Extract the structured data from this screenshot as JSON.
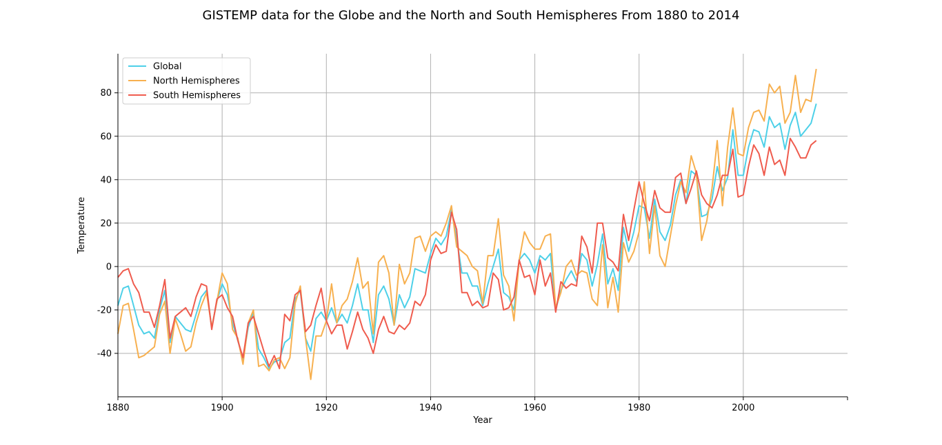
{
  "chart_data": {
    "type": "line",
    "title": "GISTEMP data for the Globe and the North and South Hemispheres From 1880 to 2014",
    "xlabel": "Year",
    "ylabel": "Temperature",
    "xlim": [
      1880,
      2020
    ],
    "ylim": [
      -60,
      98
    ],
    "xticks": [
      1880,
      1900,
      1920,
      1940,
      1960,
      1980,
      2000
    ],
    "yticks": [
      -40,
      -20,
      0,
      20,
      40,
      60,
      80
    ],
    "grid": true,
    "legend": "top-left",
    "x_start": 1880,
    "x_end": 2014,
    "series": [
      {
        "name": "Global",
        "color": "#4dd0e8",
        "values": [
          -18,
          -10,
          -9,
          -18,
          -27,
          -31,
          -30,
          -33,
          -20,
          -11,
          -35,
          -23,
          -26,
          -29,
          -30,
          -22,
          -14,
          -11,
          -28,
          -16,
          -8,
          -13,
          -26,
          -34,
          -43,
          -28,
          -21,
          -38,
          -42,
          -47,
          -44,
          -43,
          -35,
          -33,
          -15,
          -11,
          -33,
          -39,
          -24,
          -21,
          -25,
          -19,
          -26,
          -22,
          -26,
          -18,
          -8,
          -20,
          -20,
          -35,
          -13,
          -9,
          -15,
          -27,
          -13,
          -19,
          -14,
          -1,
          -2,
          -3,
          6,
          13,
          10,
          14,
          26,
          13,
          -3,
          -3,
          -9,
          -9,
          -18,
          -8,
          0,
          8,
          -12,
          -14,
          -20,
          3,
          6,
          3,
          -3,
          5,
          3,
          6,
          -20,
          -11,
          -6,
          -2,
          -7,
          6,
          3,
          -9,
          1,
          15,
          -8,
          -1,
          -11,
          18,
          7,
          16,
          28,
          27,
          13,
          31,
          16,
          12,
          19,
          33,
          40,
          29,
          44,
          42,
          23,
          24,
          31,
          46,
          35,
          41,
          63,
          42,
          42,
          55,
          63,
          62,
          55,
          69,
          64,
          66,
          54,
          65,
          71,
          60,
          63,
          66,
          75
        ]
      },
      {
        "name": "North Hemispheres",
        "color": "#f7b04f",
        "values": [
          -31,
          -18,
          -17,
          -29,
          -42,
          -41,
          -39,
          -37,
          -22,
          -16,
          -40,
          -24,
          -31,
          -39,
          -37,
          -26,
          -18,
          -12,
          -28,
          -16,
          -3,
          -8,
          -29,
          -33,
          -45,
          -26,
          -20,
          -46,
          -45,
          -48,
          -43,
          -42,
          -47,
          -42,
          -17,
          -9,
          -33,
          -52,
          -32,
          -32,
          -25,
          -8,
          -26,
          -18,
          -15,
          -7,
          4,
          -10,
          -7,
          -31,
          2,
          5,
          -3,
          -27,
          1,
          -8,
          -3,
          13,
          14,
          7,
          14,
          16,
          14,
          20,
          28,
          9,
          7,
          5,
          0,
          -2,
          -17,
          5,
          5,
          22,
          -4,
          -9,
          -25,
          3,
          16,
          11,
          8,
          8,
          14,
          15,
          -19,
          -12,
          0,
          3,
          -4,
          -2,
          -3,
          -15,
          -18,
          10,
          -19,
          -5,
          -21,
          11,
          2,
          7,
          16,
          39,
          6,
          28,
          5,
          0,
          14,
          28,
          39,
          34,
          51,
          43,
          12,
          21,
          36,
          58,
          28,
          55,
          73,
          52,
          51,
          64,
          71,
          72,
          67,
          84,
          80,
          83,
          66,
          71,
          88,
          71,
          77,
          76,
          91
        ]
      },
      {
        "name": "South Hemispheres",
        "color": "#ef5b4d",
        "values": [
          -5,
          -2,
          -1,
          -8,
          -12,
          -21,
          -21,
          -28,
          -18,
          -6,
          -33,
          -23,
          -21,
          -19,
          -23,
          -14,
          -8,
          -9,
          -29,
          -15,
          -13,
          -19,
          -23,
          -34,
          -42,
          -26,
          -23,
          -31,
          -39,
          -46,
          -41,
          -47,
          -22,
          -25,
          -13,
          -11,
          -30,
          -27,
          -18,
          -10,
          -25,
          -31,
          -27,
          -27,
          -38,
          -30,
          -21,
          -29,
          -33,
          -40,
          -29,
          -23,
          -30,
          -31,
          -27,
          -29,
          -26,
          -16,
          -18,
          -13,
          3,
          10,
          6,
          7,
          25,
          17,
          -12,
          -12,
          -18,
          -16,
          -19,
          -18,
          -3,
          -6,
          -20,
          -19,
          -14,
          3,
          -5,
          -4,
          -13,
          3,
          -9,
          -3,
          -21,
          -7,
          -10,
          -8,
          -9,
          14,
          9,
          -3,
          20,
          20,
          4,
          2,
          -2,
          24,
          12,
          26,
          39,
          29,
          21,
          35,
          27,
          25,
          25,
          41,
          43,
          29,
          36,
          44,
          33,
          29,
          27,
          33,
          42,
          42,
          54,
          32,
          33,
          46,
          56,
          52,
          42,
          55,
          47,
          49,
          42,
          59,
          55,
          50,
          50,
          56,
          58
        ]
      }
    ]
  }
}
